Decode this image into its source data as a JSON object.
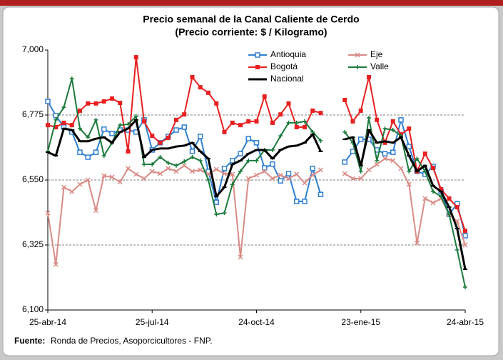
{
  "chart_data": {
    "type": "line",
    "title": "Precio semanal de la Canal Caliente de Cerdo",
    "subtitle": "(Precio corriente: $ / Kilogramo)",
    "source_label": "Fuente:",
    "source_text": "Ronda de Precios, Asoporcicultores  - FNP.",
    "categories": [
      "25-abr-14",
      null,
      null,
      null,
      null,
      null,
      null,
      null,
      null,
      null,
      null,
      null,
      null,
      "25-jul-14",
      null,
      null,
      null,
      null,
      null,
      null,
      null,
      null,
      null,
      null,
      null,
      null,
      "24-oct-14",
      null,
      null,
      null,
      null,
      null,
      null,
      null,
      null,
      null,
      null,
      null,
      null,
      "23-ene-15",
      null,
      null,
      null,
      null,
      null,
      null,
      null,
      null,
      null,
      null,
      null,
      null,
      "24-abr-15"
    ],
    "ylim": [
      6100,
      7000
    ],
    "yticks": [
      {
        "value": 6100,
        "label": "6,100"
      },
      {
        "value": 6325,
        "label": "6,325"
      },
      {
        "value": 6550,
        "label": "6,550"
      },
      {
        "value": 6775,
        "label": "6,775"
      },
      {
        "value": 7000,
        "label": "7,000"
      }
    ],
    "grid": true,
    "legend": "top",
    "series": [
      {
        "name": "Antioquia",
        "color": "#2f7fd2",
        "marker": "open-square",
        "values": [
          6822,
          6773,
          6733,
          6716,
          6646,
          6629,
          6646,
          6726,
          6711,
          6723,
          6723,
          6716,
          6758,
          6654,
          6679,
          6701,
          6723,
          6733,
          6649,
          6701,
          6580,
          6473,
          6590,
          6617,
          6641,
          6693,
          6679,
          6592,
          6605,
          6547,
          6572,
          6476,
          6476,
          6590,
          6500,
          null,
          null,
          6612,
          6649,
          6691,
          6691,
          6654,
          6641,
          6646,
          6758,
          6666,
          6580,
          6570,
          6597,
          6510,
          6431,
          6468,
          6357
        ]
      },
      {
        "name": "Eje",
        "color": "#d98c86",
        "marker": "cross",
        "values": [
          6436,
          6258,
          6525,
          6510,
          6535,
          6550,
          6444,
          6565,
          6560,
          6543,
          6590,
          6570,
          6555,
          6580,
          6572,
          6590,
          6580,
          6600,
          6580,
          6585,
          6570,
          6587,
          6572,
          6570,
          6283,
          6555,
          6567,
          6580,
          6555,
          6567,
          6555,
          6570,
          6540,
          6567,
          6585,
          null,
          null,
          6572,
          6555,
          6555,
          6585,
          6604,
          6624,
          6617,
          6590,
          6535,
          6332,
          6486,
          6471,
          6486,
          6431,
          6407,
          6325
        ]
      },
      {
        "name": "Bogotá",
        "color": "#e82020",
        "marker": "square",
        "values": [
          6740,
          6733,
          6748,
          6740,
          6790,
          6815,
          6815,
          6822,
          6832,
          6817,
          6649,
          6975,
          6753,
          6703,
          6679,
          6696,
          6758,
          6777,
          6906,
          6871,
          6852,
          6815,
          6716,
          6748,
          6740,
          6753,
          6753,
          6839,
          6748,
          6777,
          6815,
          6733,
          6733,
          6790,
          6782,
          null,
          null,
          6827,
          6753,
          6790,
          6906,
          6758,
          6679,
          6753,
          6708,
          6728,
          6580,
          6641,
          6592,
          6518,
          6486,
          6456,
          6374
        ]
      },
      {
        "name": "Valle",
        "color": "#1b7a3c",
        "marker": "plus",
        "values": [
          6649,
          6758,
          6802,
          6901,
          6728,
          6698,
          6758,
          6634,
          6679,
          6740,
          6743,
          6770,
          6604,
          6604,
          6629,
          6609,
          6600,
          6614,
          6629,
          6617,
          6550,
          6431,
          6436,
          6535,
          6580,
          6617,
          6617,
          6654,
          6654,
          6703,
          6748,
          6748,
          6753,
          6716,
          6686,
          null,
          null,
          6716,
          6679,
          6580,
          6765,
          6617,
          6728,
          6723,
          6703,
          6580,
          6624,
          6580,
          6510,
          6493,
          6431,
          6308,
          6179
        ]
      },
      {
        "name": "Nacional",
        "color": "#000000",
        "marker": "dash",
        "values": [
          6646,
          6634,
          6728,
          6723,
          6684,
          6684,
          6693,
          6698,
          6679,
          6716,
          6728,
          6758,
          6629,
          6654,
          6659,
          6659,
          6666,
          6669,
          6679,
          6649,
          6624,
          6493,
          6525,
          6604,
          6617,
          6641,
          6654,
          6654,
          6624,
          6654,
          6666,
          6669,
          6679,
          6708,
          6649,
          null,
          null,
          6691,
          6698,
          6600,
          6723,
          6679,
          6684,
          6679,
          6698,
          6634,
          6580,
          6600,
          6530,
          6510,
          6456,
          6382,
          6241
        ]
      }
    ]
  }
}
